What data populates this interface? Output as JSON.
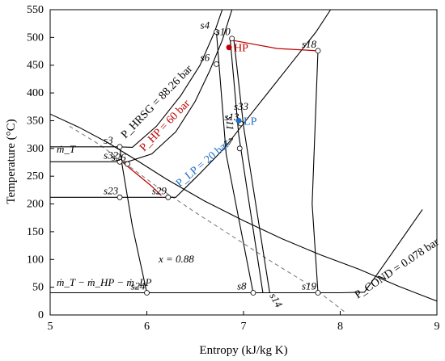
{
  "chart_data": {
    "type": "line",
    "title": "",
    "xlabel": "Entropy (kJ/kg K)",
    "ylabel": "Temperature (°C)",
    "xlim": [
      5,
      9
    ],
    "ylim": [
      0,
      550
    ],
    "x_ticks": [
      "5",
      "6",
      "7",
      "8",
      "9"
    ],
    "y_ticks": [
      "0",
      "50",
      "100",
      "150",
      "200",
      "250",
      "300",
      "350",
      "400",
      "450",
      "500",
      "550"
    ],
    "grid": false,
    "colors": {
      "hp": "#c00000",
      "lp": "#1f6fc5",
      "dome": "#000000",
      "quality": "#808080"
    },
    "series": [
      {
        "id": "saturation-dome",
        "style": "solid",
        "points": [
          [
            5.0,
            362
          ],
          [
            5.3,
            338
          ],
          [
            5.6,
            310
          ],
          [
            5.9,
            278
          ],
          [
            6.2,
            245
          ],
          [
            6.6,
            205
          ],
          [
            7.0,
            170
          ],
          [
            7.4,
            137
          ],
          [
            7.8,
            108
          ],
          [
            8.2,
            82
          ],
          [
            8.6,
            52
          ],
          [
            9.0,
            25
          ]
        ]
      },
      {
        "id": "quality-line",
        "style": "dashed",
        "points": [
          [
            5.2,
            340
          ],
          [
            5.5,
            308
          ],
          [
            5.8,
            270
          ],
          [
            6.1,
            232
          ],
          [
            6.5,
            185
          ],
          [
            6.9,
            140
          ],
          [
            7.3,
            95
          ],
          [
            7.7,
            52
          ],
          [
            8.05,
            5
          ]
        ]
      },
      {
        "id": "isobar-hrsg",
        "style": "solid",
        "points": [
          [
            5.0,
            303
          ],
          [
            5.25,
            303
          ],
          [
            5.55,
            303
          ],
          [
            5.7,
            303
          ],
          [
            5.85,
            302
          ],
          [
            6.1,
            340
          ],
          [
            6.35,
            395
          ],
          [
            6.55,
            450
          ],
          [
            6.7,
            510
          ],
          [
            6.78,
            550
          ]
        ]
      },
      {
        "id": "isobar-hp",
        "style": "solid",
        "points": [
          [
            5.0,
            276
          ],
          [
            5.5,
            276
          ],
          [
            5.8,
            276
          ],
          [
            6.05,
            290
          ],
          [
            6.3,
            330
          ],
          [
            6.5,
            385
          ],
          [
            6.65,
            440
          ],
          [
            6.78,
            495
          ],
          [
            6.88,
            550
          ]
        ]
      },
      {
        "id": "isobar-lp",
        "style": "solid",
        "points": [
          [
            5.0,
            212
          ],
          [
            5.5,
            212
          ],
          [
            5.8,
            212
          ],
          [
            6.3,
            212
          ],
          [
            6.55,
            255
          ],
          [
            6.8,
            300
          ],
          [
            7.0,
            345
          ],
          [
            7.25,
            400
          ],
          [
            7.5,
            455
          ],
          [
            7.75,
            510
          ],
          [
            7.9,
            550
          ]
        ]
      },
      {
        "id": "isobar-cond",
        "style": "solid",
        "points": [
          [
            5.0,
            40
          ],
          [
            6.0,
            40
          ],
          [
            7.0,
            40
          ],
          [
            7.5,
            40
          ],
          [
            8.0,
            40
          ],
          [
            8.25,
            41
          ],
          [
            8.45,
            90
          ],
          [
            8.65,
            140
          ],
          [
            8.85,
            190
          ]
        ]
      },
      {
        "id": "hp-expansion",
        "style": "solid",
        "points": [
          [
            6.72,
            510
          ],
          [
            6.82,
            290
          ],
          [
            7.1,
            40
          ]
        ]
      },
      {
        "id": "hp-leg-2",
        "style": "solid",
        "points": [
          [
            6.86,
            500
          ],
          [
            6.95,
            325
          ],
          [
            7.2,
            40
          ]
        ]
      },
      {
        "id": "hp-leg-3",
        "style": "solid",
        "points": [
          [
            6.9,
            495
          ],
          [
            7.0,
            340
          ],
          [
            7.27,
            40
          ]
        ]
      },
      {
        "id": "lp-expansion",
        "style": "solid",
        "points": [
          [
            7.77,
            476
          ],
          [
            7.71,
            200
          ],
          [
            7.77,
            40
          ]
        ]
      },
      {
        "id": "pump-line",
        "style": "solid",
        "points": [
          [
            5.72,
            303
          ],
          [
            5.74,
            275
          ],
          [
            5.85,
            160
          ],
          [
            6.0,
            40
          ]
        ]
      }
    ],
    "red_segments": [
      {
        "points": [
          [
            6.88,
            495
          ],
          [
            7.35,
            480
          ],
          [
            7.77,
            476
          ]
        ]
      },
      {
        "points": [
          [
            5.75,
            275
          ],
          [
            6.05,
            232
          ],
          [
            6.15,
            215
          ]
        ]
      }
    ],
    "state_points": [
      {
        "label": "s4",
        "x": 6.72,
        "y": 510
      },
      {
        "label": "s10",
        "x": 6.88,
        "y": 498
      },
      {
        "label": "s18",
        "x": 7.77,
        "y": 476
      },
      {
        "label": "s6",
        "x": 6.72,
        "y": 452
      },
      {
        "label": "s3",
        "x": 5.72,
        "y": 303
      },
      {
        "label": "s32",
        "x": 5.72,
        "y": 276
      },
      {
        "label": "s26",
        "x": 5.8,
        "y": 272
      },
      {
        "label": "s23",
        "x": 5.72,
        "y": 212
      },
      {
        "label": "s29",
        "x": 6.22,
        "y": 212
      },
      {
        "label": "s13",
        "x": 6.97,
        "y": 345
      },
      {
        "label": "s7",
        "x": 6.96,
        "y": 300
      },
      {
        "label": "s24",
        "x": 6.0,
        "y": 40
      },
      {
        "label": "s8",
        "x": 7.1,
        "y": 40
      },
      {
        "label": "s19",
        "x": 7.77,
        "y": 40
      }
    ],
    "markers": [
      {
        "label": "HP",
        "x": 6.85,
        "y": 482,
        "color": "#c00000"
      },
      {
        "label": "LP",
        "x": 6.95,
        "y": 350,
        "color": "#1f6fc5"
      }
    ],
    "annotations": [
      {
        "text": "P_HRSG = 88.26 bar"
      },
      {
        "text": "P_HP = 60 bar"
      },
      {
        "text": "P_LP = 20 bar"
      },
      {
        "text": "P_COND = 0.078 bar"
      },
      {
        "text": "ṁ_T"
      },
      {
        "text": "ṁ_T − ṁ_HP − ṁ_LP"
      },
      {
        "text": "x = 0.88"
      },
      {
        "text": "s33"
      },
      {
        "text": "s11"
      },
      {
        "text": "s14"
      }
    ]
  }
}
